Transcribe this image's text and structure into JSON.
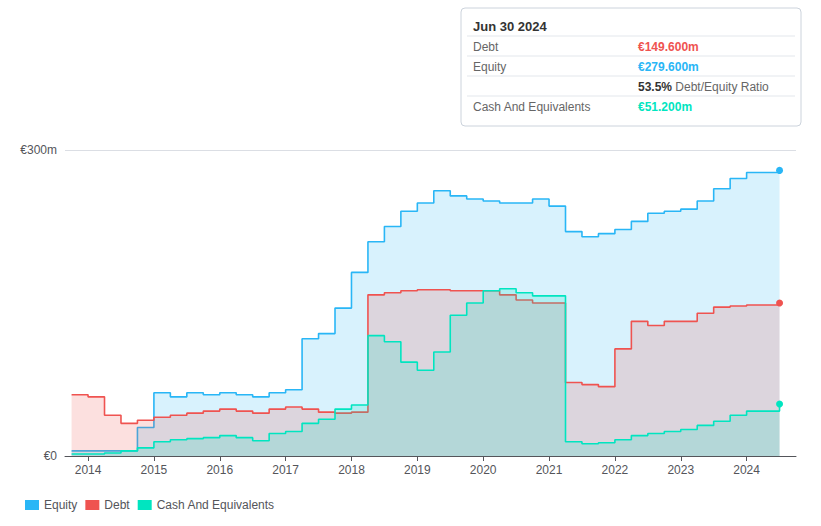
{
  "chart_data": {
    "type": "area",
    "line_style": "step",
    "series": [
      {
        "name": "Equity",
        "color": "#29b6f6",
        "x": [
          2013.75,
          2014.0,
          2014.3,
          2014.5,
          2014.75,
          2015.0,
          2015.25,
          2015.5,
          2015.75,
          2016.0,
          2016.25,
          2016.5,
          2016.75,
          2017.0,
          2017.25,
          2017.5,
          2017.75,
          2018.0,
          2018.25,
          2018.5,
          2018.75,
          2019.0,
          2019.25,
          2019.5,
          2019.75,
          2020.0,
          2020.25,
          2020.5,
          2020.75,
          2021.0,
          2021.25,
          2021.5,
          2021.75,
          2022.0,
          2022.25,
          2022.5,
          2022.75,
          2023.0,
          2023.25,
          2023.5,
          2023.75,
          2024.0,
          2024.5
        ],
        "values": [
          5,
          5,
          5,
          5,
          28,
          62,
          58,
          62,
          60,
          62,
          60,
          58,
          62,
          65,
          115,
          120,
          145,
          180,
          210,
          225,
          240,
          248,
          260,
          255,
          252,
          250,
          248,
          248,
          252,
          245,
          220,
          215,
          218,
          222,
          230,
          238,
          240,
          242,
          250,
          262,
          272,
          278,
          280
        ]
      },
      {
        "name": "Debt",
        "color": "#ef5350",
        "x": [
          2013.75,
          2014.0,
          2014.25,
          2014.5,
          2014.75,
          2015.0,
          2015.25,
          2015.5,
          2015.75,
          2016.0,
          2016.25,
          2016.5,
          2016.75,
          2017.0,
          2017.25,
          2017.5,
          2017.75,
          2018.0,
          2018.25,
          2018.5,
          2018.75,
          2019.0,
          2019.25,
          2019.5,
          2019.75,
          2020.0,
          2020.25,
          2020.5,
          2020.75,
          2021.0,
          2021.25,
          2021.5,
          2021.75,
          2022.0,
          2022.25,
          2022.5,
          2022.75,
          2023.0,
          2023.25,
          2023.5,
          2023.75,
          2024.0,
          2024.5
        ],
        "values": [
          60,
          58,
          40,
          32,
          35,
          38,
          40,
          42,
          44,
          46,
          44,
          42,
          46,
          48,
          46,
          43,
          42,
          43,
          158,
          160,
          162,
          163,
          163,
          162,
          162,
          162,
          158,
          153,
          150,
          150,
          72,
          70,
          68,
          105,
          132,
          128,
          132,
          132,
          140,
          146,
          147,
          148,
          150
        ]
      },
      {
        "name": "Cash And Equivalents",
        "color": "#00e5c0",
        "x": [
          2013.75,
          2014.0,
          2014.25,
          2014.5,
          2014.75,
          2015.0,
          2015.25,
          2015.5,
          2015.75,
          2016.0,
          2016.25,
          2016.5,
          2016.75,
          2017.0,
          2017.25,
          2017.5,
          2017.75,
          2018.0,
          2018.25,
          2018.5,
          2018.75,
          2019.0,
          2019.25,
          2019.5,
          2019.75,
          2020.0,
          2020.25,
          2020.5,
          2020.75,
          2021.0,
          2021.25,
          2021.5,
          2021.75,
          2022.0,
          2022.25,
          2022.5,
          2022.75,
          2023.0,
          2023.25,
          2023.5,
          2023.75,
          2024.0,
          2024.5
        ],
        "values": [
          2,
          2,
          3,
          5,
          8,
          14,
          16,
          17,
          18,
          20,
          18,
          15,
          22,
          24,
          32,
          36,
          46,
          50,
          118,
          112,
          92,
          84,
          102,
          138,
          150,
          162,
          164,
          160,
          157,
          157,
          14,
          12,
          13,
          16,
          20,
          22,
          24,
          26,
          30,
          34,
          40,
          44,
          51
        ]
      }
    ],
    "xlim": [
      2013.65,
      2024.75
    ],
    "xticks": [
      2014,
      2015,
      2016,
      2017,
      2018,
      2019,
      2020,
      2021,
      2022,
      2023,
      2024
    ],
    "ylim": [
      0,
      300
    ],
    "yticks": [
      {
        "value": 0,
        "label": "€0"
      },
      {
        "value": 300,
        "label": "€300m"
      }
    ],
    "grid": true,
    "legend": "lower left",
    "annotation": {
      "title": "Jun 30 2024",
      "rows": [
        {
          "label": "Debt",
          "value": "€149.600m",
          "color": "#ef5350"
        },
        {
          "label": "Equity",
          "value": "€279.600m",
          "color": "#29b6f6"
        },
        {
          "value": "53.5%",
          "note": "Debt/Equity Ratio"
        },
        {
          "label": "Cash And Equivalents",
          "value": "€51.200m",
          "color": "#00e5c0"
        }
      ]
    }
  }
}
